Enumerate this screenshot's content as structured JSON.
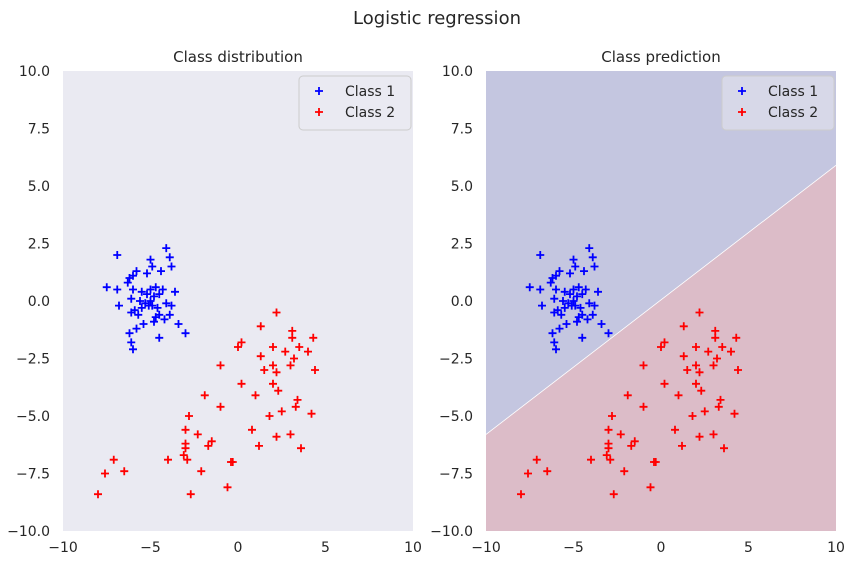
{
  "figure": {
    "suptitle": "Logistic regression"
  },
  "chart_data": [
    {
      "type": "scatter",
      "title": "Class distribution",
      "xlabel": "",
      "ylabel": "",
      "xlim": [
        -10,
        10
      ],
      "ylim": [
        -10,
        10
      ],
      "xticks": [
        "−10",
        "−5",
        "0",
        "5",
        "10"
      ],
      "yticks": [
        "10.0",
        "7.5",
        "5.0",
        "2.5",
        "0.0",
        "−2.5",
        "−5.0",
        "−7.5",
        "−10.0"
      ],
      "grid": false,
      "legend": "top-right",
      "background": "#eaeaf2",
      "series": [
        {
          "name": "Class 1",
          "color": "#0000ff",
          "marker": "plus",
          "points": [
            [
              -6.9,
              2.0
            ],
            [
              -5.8,
              1.3
            ],
            [
              -5.2,
              1.2
            ],
            [
              -4.4,
              1.3
            ],
            [
              -3.9,
              1.9
            ],
            [
              -3.8,
              1.5
            ],
            [
              -5.0,
              1.8
            ],
            [
              -4.9,
              1.5
            ],
            [
              -4.1,
              2.3
            ],
            [
              -6.2,
              1.0
            ],
            [
              -6.0,
              1.1
            ],
            [
              -6.3,
              0.8
            ],
            [
              -7.5,
              0.6
            ],
            [
              -6.9,
              0.5
            ],
            [
              -6.0,
              0.5
            ],
            [
              -5.5,
              0.4
            ],
            [
              -5.0,
              0.5
            ],
            [
              -4.7,
              0.6
            ],
            [
              -4.3,
              0.5
            ],
            [
              -3.6,
              0.4
            ],
            [
              -5.2,
              0.3
            ],
            [
              -4.8,
              0.2
            ],
            [
              -4.5,
              0.3
            ],
            [
              -6.1,
              0.1
            ],
            [
              -5.6,
              0.0
            ],
            [
              -5.3,
              -0.1
            ],
            [
              -4.9,
              -0.2
            ],
            [
              -4.6,
              -0.3
            ],
            [
              -4.1,
              -0.1
            ],
            [
              -3.8,
              -0.2
            ],
            [
              -6.8,
              -0.2
            ],
            [
              -6.1,
              -0.5
            ],
            [
              -5.7,
              -0.6
            ],
            [
              -5.5,
              -0.3
            ],
            [
              -5.1,
              -0.2
            ],
            [
              -4.5,
              -0.6
            ],
            [
              -4.2,
              -0.8
            ],
            [
              -3.9,
              -0.6
            ],
            [
              -4.8,
              -0.9
            ],
            [
              -5.4,
              -1.0
            ],
            [
              -5.8,
              -1.2
            ],
            [
              -6.2,
              -1.4
            ],
            [
              -3.4,
              -1.0
            ],
            [
              -3.0,
              -1.4
            ],
            [
              -4.5,
              -1.6
            ],
            [
              -6.1,
              -1.8
            ],
            [
              -6.0,
              -2.1
            ],
            [
              -4.7,
              -0.7
            ],
            [
              -5.0,
              0.0
            ],
            [
              -5.9,
              -0.4
            ]
          ]
        },
        {
          "name": "Class 2",
          "color": "#ff0000",
          "marker": "plus",
          "points": [
            [
              2.2,
              -0.5
            ],
            [
              1.3,
              -1.1
            ],
            [
              3.1,
              -1.3
            ],
            [
              3.1,
              -1.6
            ],
            [
              4.3,
              -1.6
            ],
            [
              0.2,
              -1.8
            ],
            [
              0.0,
              -2.0
            ],
            [
              2.0,
              -2.0
            ],
            [
              2.7,
              -2.2
            ],
            [
              3.5,
              -2.0
            ],
            [
              4.0,
              -2.2
            ],
            [
              1.3,
              -2.4
            ],
            [
              3.2,
              -2.5
            ],
            [
              3.0,
              -2.8
            ],
            [
              2.0,
              -2.8
            ],
            [
              -1.0,
              -2.8
            ],
            [
              1.5,
              -3.0
            ],
            [
              2.2,
              -3.1
            ],
            [
              4.4,
              -3.0
            ],
            [
              0.2,
              -3.6
            ],
            [
              2.0,
              -3.6
            ],
            [
              2.3,
              -3.9
            ],
            [
              1.0,
              -4.1
            ],
            [
              -1.9,
              -4.1
            ],
            [
              3.4,
              -4.3
            ],
            [
              3.3,
              -4.6
            ],
            [
              2.5,
              -4.8
            ],
            [
              4.2,
              -4.9
            ],
            [
              -2.8,
              -5.0
            ],
            [
              1.8,
              -5.0
            ],
            [
              -1.0,
              -4.6
            ],
            [
              0.8,
              -5.6
            ],
            [
              -3.0,
              -5.6
            ],
            [
              -2.3,
              -5.8
            ],
            [
              3.0,
              -5.8
            ],
            [
              2.2,
              -5.9
            ],
            [
              -1.5,
              -6.1
            ],
            [
              -1.7,
              -6.3
            ],
            [
              -3.0,
              -6.2
            ],
            [
              1.2,
              -6.3
            ],
            [
              -4.0,
              -6.9
            ],
            [
              -3.1,
              -6.7
            ],
            [
              -2.9,
              -6.9
            ],
            [
              -0.4,
              -7.0
            ],
            [
              -0.3,
              -7.0
            ],
            [
              -3.0,
              -6.4
            ],
            [
              3.6,
              -6.4
            ],
            [
              -7.1,
              -6.9
            ],
            [
              -6.5,
              -7.4
            ],
            [
              -7.6,
              -7.5
            ],
            [
              -2.1,
              -7.4
            ],
            [
              -8.0,
              -8.4
            ],
            [
              -2.7,
              -8.4
            ],
            [
              -0.6,
              -8.1
            ]
          ]
        }
      ]
    },
    {
      "type": "scatter",
      "title": "Class prediction",
      "xlabel": "",
      "ylabel": "",
      "xlim": [
        -10,
        10
      ],
      "ylim": [
        -10,
        10
      ],
      "xticks": [
        "−10",
        "−5",
        "0",
        "5",
        "10"
      ],
      "yticks": [
        "10.0",
        "7.5",
        "5.0",
        "2.5",
        "0.0",
        "−2.5",
        "−5.0",
        "−7.5",
        "−10.0"
      ],
      "grid": false,
      "legend": "top-right",
      "decision_boundary": {
        "x": [
          -10,
          10
        ],
        "y": [
          -5.8,
          5.9
        ]
      },
      "region_colors": {
        "class_1": "#c4c6e0",
        "class_2": "#dcbcc8"
      },
      "series_ref": "same points as Class distribution",
      "series": [
        {
          "name": "Class 1",
          "color": "#0000ff",
          "marker": "plus"
        },
        {
          "name": "Class 2",
          "color": "#ff0000",
          "marker": "plus"
        }
      ]
    }
  ]
}
